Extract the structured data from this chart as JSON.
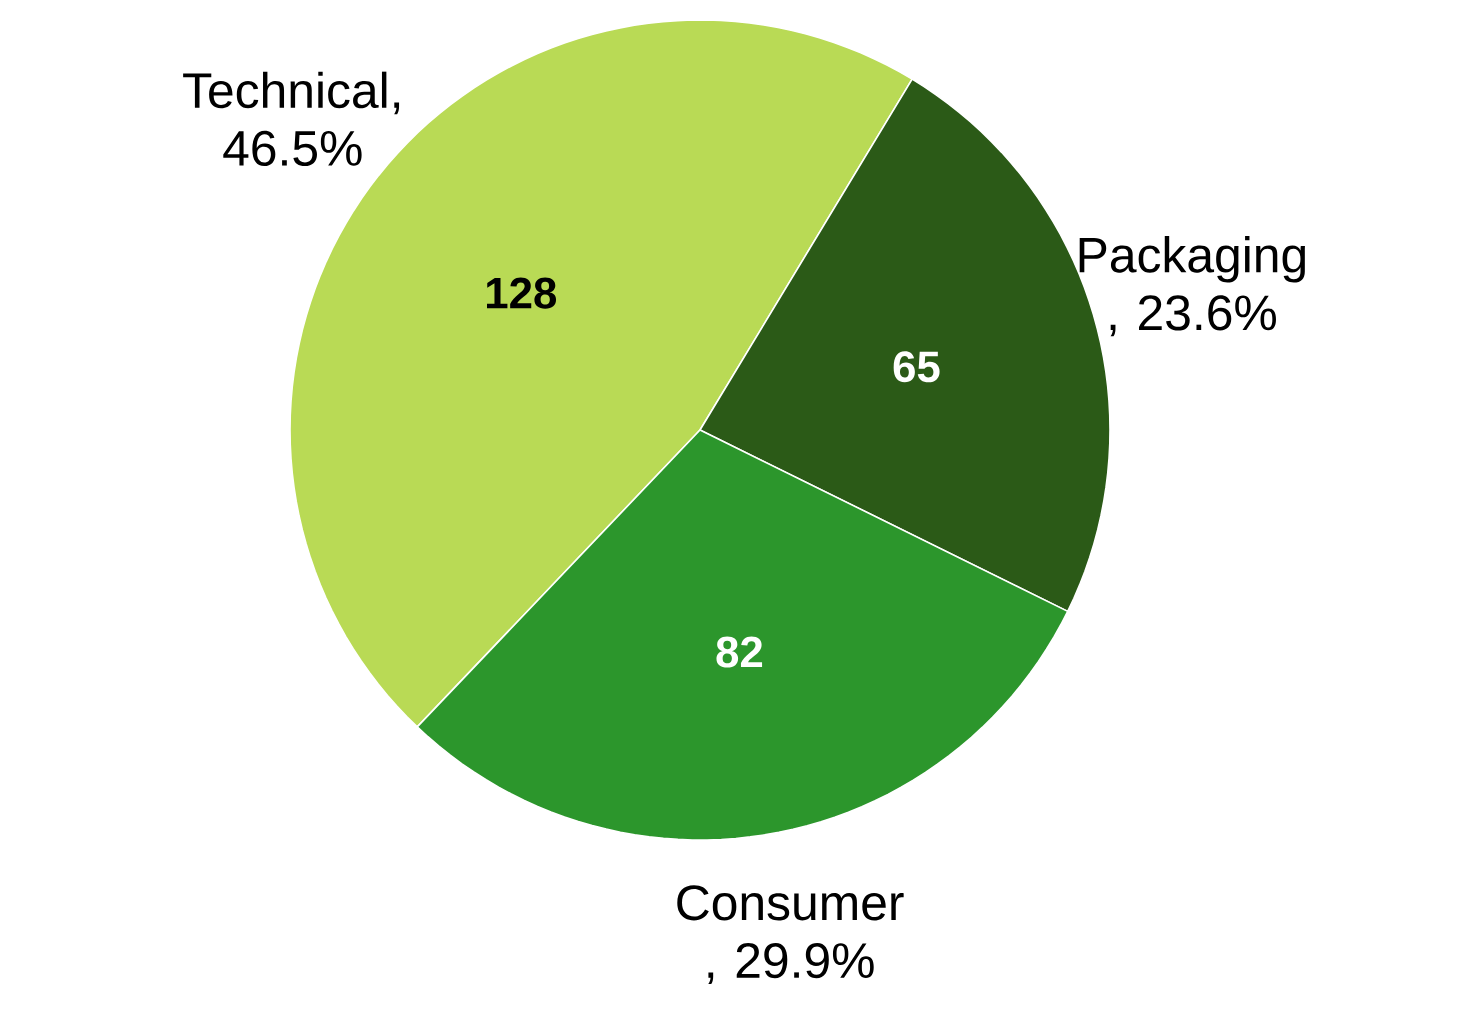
{
  "chart_data": {
    "type": "pie",
    "categories": [
      "Technical, 46.5%",
      "Packaging , 23.6%",
      "Consumer , 29.9%"
    ],
    "values": [
      128,
      65,
      82
    ],
    "value_labels": [
      "128",
      "65",
      "82"
    ],
    "colors": [
      "#b9da55",
      "#2b5a17",
      "#2c962c"
    ]
  }
}
